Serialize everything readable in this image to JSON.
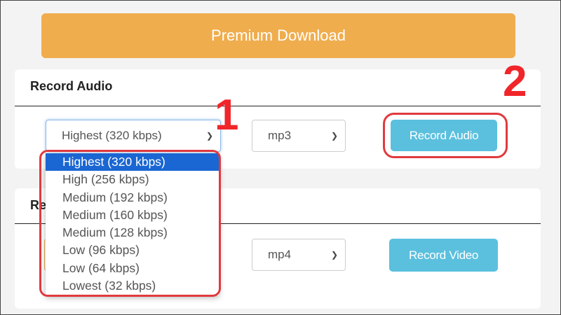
{
  "premium_label": "Premium Download",
  "audio": {
    "title": "Record Audio",
    "quality": "Highest (320 kbps)",
    "format": "mp3",
    "button": "Record Audio"
  },
  "video": {
    "title": "Record Video",
    "format": "mp4",
    "button": "Record Video"
  },
  "dropdown_options": [
    "Highest (320 kbps)",
    "High (256 kbps)",
    "Medium (192 kbps)",
    "Medium (160 kbps)",
    "Medium (128 kbps)",
    "Low (96 kbps)",
    "Low (64 kbps)",
    "Lowest (32 kbps)"
  ],
  "annotations": [
    "1",
    "2"
  ],
  "colors": {
    "premium": "#f0ad4e",
    "button": "#5bc0de",
    "highlight": "#1a66d2",
    "annotation": "#e03a3e"
  }
}
